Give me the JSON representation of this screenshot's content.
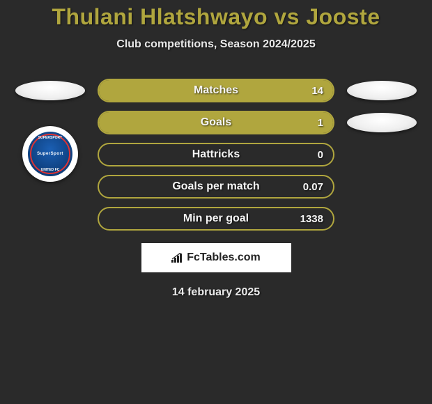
{
  "title": "Thulani Hlatshwayo vs Jooste",
  "subtitle": "Club competitions, Season 2024/2025",
  "date": "14 february 2025",
  "brand": "FcTables.com",
  "colors": {
    "accent": "#b0a63e",
    "background": "#2a2a2a",
    "text": "#ffffff",
    "bar_border": "#b0a63e",
    "bar_fill": "#b0a63e"
  },
  "club_logo": {
    "name": "SuperSport United FC",
    "primary": "#1b5fb3",
    "secondary": "#d33333"
  },
  "stats": [
    {
      "label": "Matches",
      "value": "14",
      "fill_pct": 100,
      "show_left_badge": true,
      "show_right_badge": true,
      "show_club_logo": false
    },
    {
      "label": "Goals",
      "value": "1",
      "fill_pct": 100,
      "show_left_badge": false,
      "show_right_badge": true,
      "show_club_logo": true
    },
    {
      "label": "Hattricks",
      "value": "0",
      "fill_pct": 0,
      "show_left_badge": false,
      "show_right_badge": false,
      "show_club_logo": true
    },
    {
      "label": "Goals per match",
      "value": "0.07",
      "fill_pct": 0,
      "show_left_badge": false,
      "show_right_badge": false,
      "show_club_logo": false
    },
    {
      "label": "Min per goal",
      "value": "1338",
      "fill_pct": 0,
      "show_left_badge": false,
      "show_right_badge": false,
      "show_club_logo": false
    }
  ]
}
